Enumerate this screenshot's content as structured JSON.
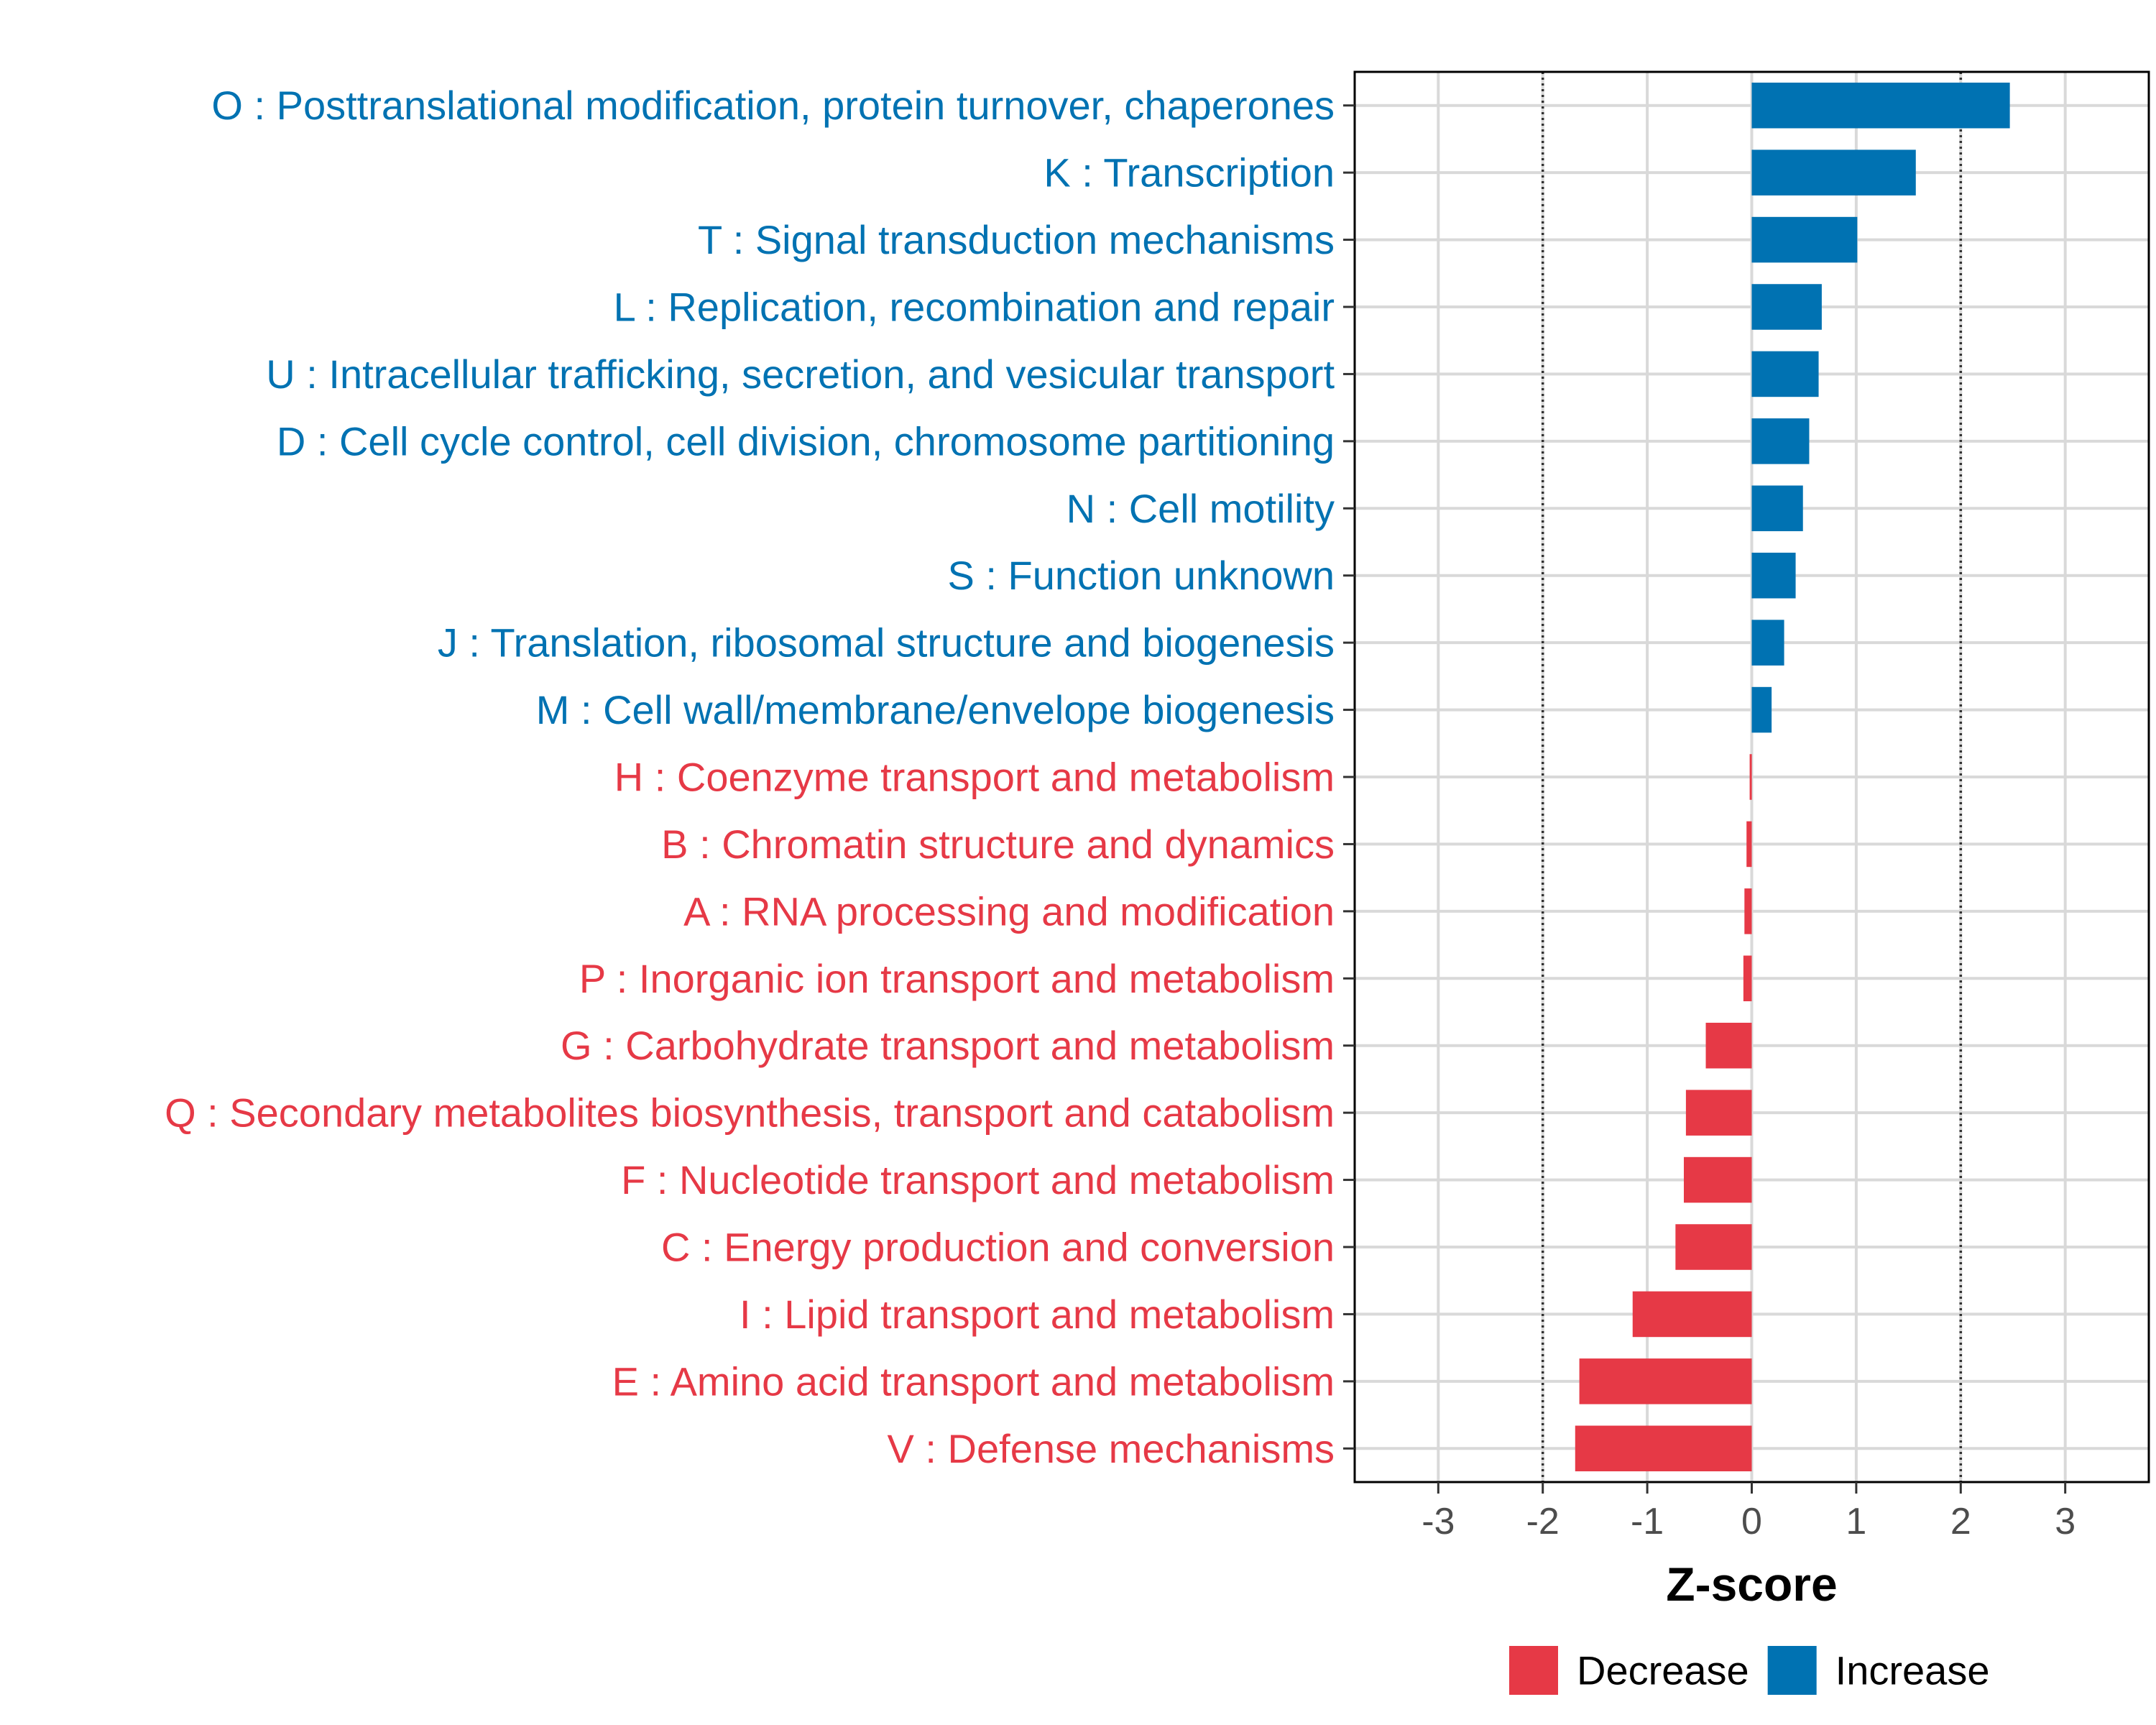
{
  "chart_data": {
    "type": "bar",
    "orientation": "horizontal",
    "title": "",
    "xlabel": "Z-score",
    "ylabel": "",
    "xlim": [
      -3.8,
      3.8
    ],
    "xticks": [
      -3,
      -2,
      -1,
      0,
      1,
      2,
      3
    ],
    "xtick_labels": [
      "-3",
      "-2",
      "-1",
      "0",
      "1",
      "2",
      "3"
    ],
    "reference_lines": [
      -2,
      2
    ],
    "grid": true,
    "legend_position": "bottom",
    "categories": [
      "O : Posttranslational modification, protein turnover, chaperones",
      "K : Transcription",
      "T : Signal transduction mechanisms",
      "L : Replication, recombination and repair",
      "U : Intracellular trafficking, secretion, and vesicular transport",
      "D : Cell cycle control, cell division, chromosome partitioning",
      "N : Cell motility",
      "S : Function unknown",
      "J : Translation, ribosomal structure and biogenesis",
      "M : Cell wall/membrane/envelope biogenesis",
      "H : Coenzyme transport and metabolism",
      "B : Chromatin structure and dynamics",
      "A : RNA processing and modification",
      "P : Inorganic ion transport and metabolism",
      "G : Carbohydrate transport and metabolism",
      "Q : Secondary metabolites biosynthesis, transport and catabolism",
      "F : Nucleotide transport and metabolism",
      "C : Energy production and conversion",
      "I : Lipid transport and metabolism",
      "E : Amino acid transport and metabolism",
      "V : Defense mechanisms"
    ],
    "values": [
      2.47,
      1.57,
      1.01,
      0.67,
      0.64,
      0.55,
      0.49,
      0.42,
      0.31,
      0.19,
      -0.02,
      -0.05,
      -0.07,
      -0.08,
      -0.44,
      -0.63,
      -0.65,
      -0.73,
      -1.14,
      -1.65,
      -1.69
    ],
    "groups": [
      "Increase",
      "Increase",
      "Increase",
      "Increase",
      "Increase",
      "Increase",
      "Increase",
      "Increase",
      "Increase",
      "Increase",
      "Decrease",
      "Decrease",
      "Decrease",
      "Decrease",
      "Decrease",
      "Decrease",
      "Decrease",
      "Decrease",
      "Decrease",
      "Decrease",
      "Decrease"
    ],
    "legend": [
      {
        "label": "Decrease",
        "color": "#E63946"
      },
      {
        "label": "Increase",
        "color": "#0072B2"
      }
    ]
  }
}
